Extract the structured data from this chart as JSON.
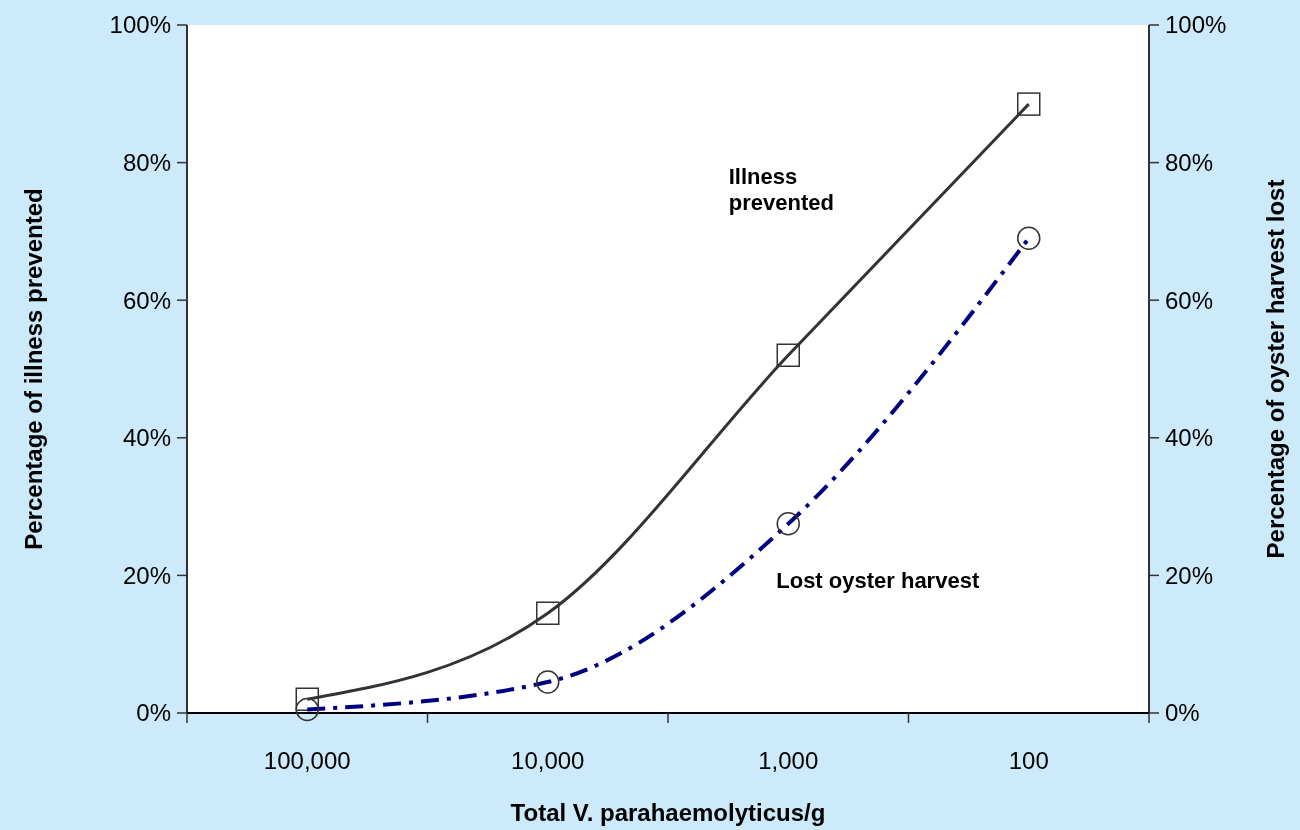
{
  "chart_data": {
    "type": "line",
    "xlabel": "Total V. parahaemolyticus/g",
    "ylabel": "Percentage of illness prevented",
    "y2label": "Percentage of oyster harvest lost",
    "categories": [
      "100,000",
      "10,000",
      "1,000",
      "100"
    ],
    "series": [
      {
        "name": "Illness prevented",
        "color": "#333333",
        "marker": "square",
        "line_style": "solid",
        "values": [
          2,
          14.5,
          52,
          88.5
        ]
      },
      {
        "name": "Lost oyster harvest",
        "color": "#000080",
        "marker": "circle",
        "line_style": "dashed",
        "values": [
          0.5,
          4.5,
          27.5,
          69
        ]
      }
    ],
    "ylim": [
      0,
      100
    ],
    "yticks": [
      {
        "value": 0,
        "label": "0%"
      },
      {
        "value": 20,
        "label": "20%"
      },
      {
        "value": 40,
        "label": "40%"
      },
      {
        "value": 60,
        "label": "60%"
      },
      {
        "value": 80,
        "label": "80%"
      },
      {
        "value": 100,
        "label": "100%"
      }
    ],
    "y2lim": [
      0,
      100
    ],
    "y2ticks": [
      {
        "value": 0,
        "label": "0%"
      },
      {
        "value": 20,
        "label": "20%"
      },
      {
        "value": 40,
        "label": "40%"
      },
      {
        "value": 60,
        "label": "60%"
      },
      {
        "value": 80,
        "label": "80%"
      },
      {
        "value": 100,
        "label": "100%"
      }
    ],
    "grid": false
  }
}
